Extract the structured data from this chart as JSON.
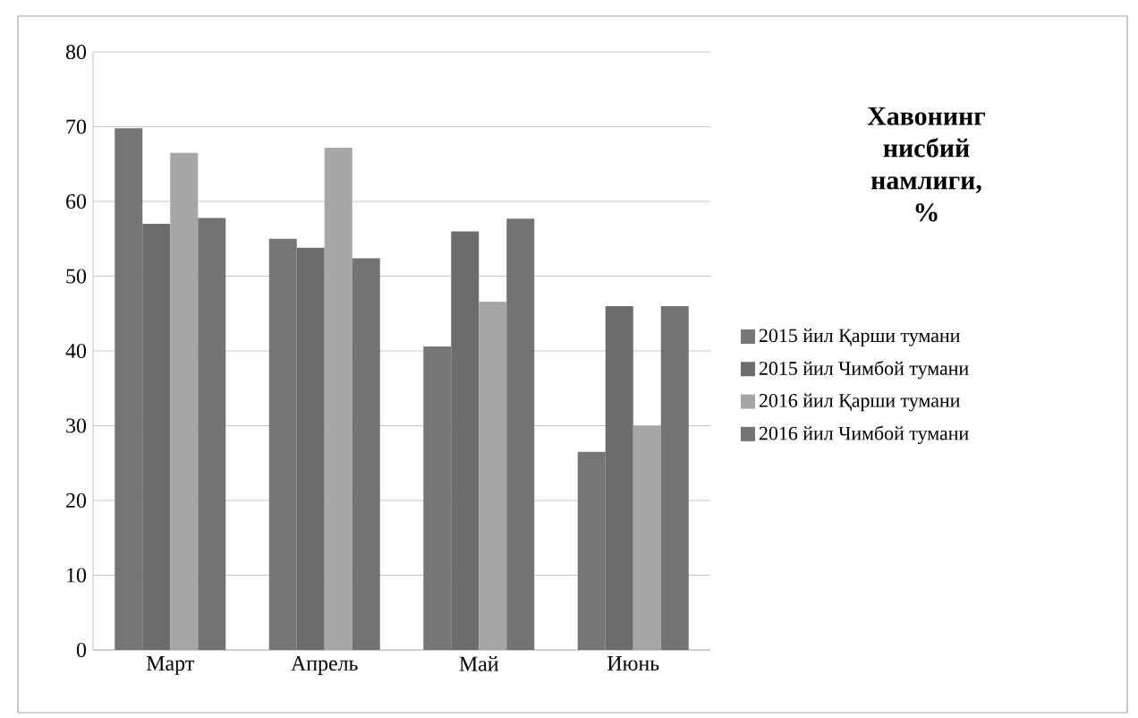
{
  "chart_data": {
    "type": "bar",
    "title": "Хавонинг нисбий намлиги, %",
    "categories": [
      "Март",
      "Апрель",
      "Май",
      "Июнь"
    ],
    "series": [
      {
        "name": "2015 йил Қарши тумани",
        "color": "#767676",
        "values": [
          69.8,
          55.0,
          40.6,
          26.5
        ]
      },
      {
        "name": "2015 йил Чимбой тумани",
        "color": "#6c6c6c",
        "values": [
          57.0,
          53.8,
          56.0,
          46.0
        ]
      },
      {
        "name": "2016 йил Қарши тумани",
        "color": "#a6a6a6",
        "values": [
          66.5,
          67.2,
          46.6,
          30.0
        ]
      },
      {
        "name": "2016 йил Чимбой тумани",
        "color": "#737373",
        "values": [
          57.8,
          52.4,
          57.7,
          46.0
        ]
      }
    ],
    "ylim": [
      0,
      80
    ],
    "yticks": [
      0,
      10,
      20,
      30,
      40,
      50,
      60,
      70,
      80
    ],
    "grid": "y",
    "legend": "right"
  }
}
